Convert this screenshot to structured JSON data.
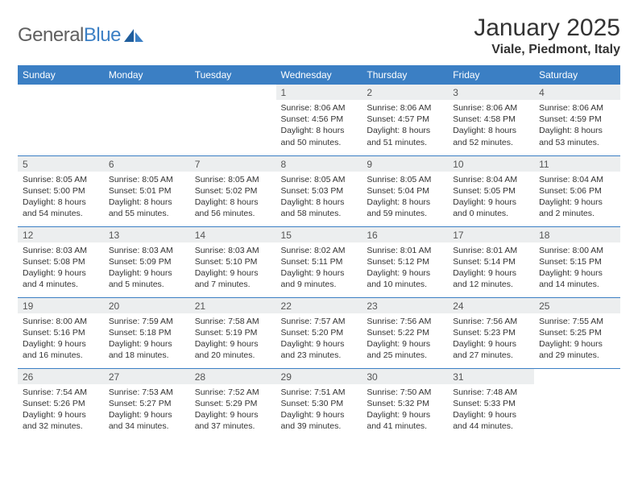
{
  "brand": {
    "name_gray": "General",
    "name_blue": "Blue"
  },
  "header": {
    "month_title": "January 2025",
    "location": "Viale, Piedmont, Italy"
  },
  "colors": {
    "header_bg": "#3b7fc4",
    "header_text": "#ffffff",
    "daynum_bg": "#eceeef",
    "border": "#3b7fc4",
    "logo_gray": "#606060",
    "logo_blue": "#3b7fc4",
    "text": "#333333"
  },
  "typography": {
    "month_title_fontsize": 30,
    "location_fontsize": 16,
    "weekday_fontsize": 12,
    "daynum_fontsize": 12,
    "body_fontsize": 10.5
  },
  "weekdays": [
    "Sunday",
    "Monday",
    "Tuesday",
    "Wednesday",
    "Thursday",
    "Friday",
    "Saturday"
  ],
  "labels": {
    "sunrise": "Sunrise:",
    "sunset": "Sunset:",
    "daylight": "Daylight:"
  },
  "weeks": [
    [
      null,
      null,
      null,
      {
        "d": "1",
        "sunrise": "8:06 AM",
        "sunset": "4:56 PM",
        "dl_line1": "8 hours",
        "dl_line2": "and 50 minutes."
      },
      {
        "d": "2",
        "sunrise": "8:06 AM",
        "sunset": "4:57 PM",
        "dl_line1": "8 hours",
        "dl_line2": "and 51 minutes."
      },
      {
        "d": "3",
        "sunrise": "8:06 AM",
        "sunset": "4:58 PM",
        "dl_line1": "8 hours",
        "dl_line2": "and 52 minutes."
      },
      {
        "d": "4",
        "sunrise": "8:06 AM",
        "sunset": "4:59 PM",
        "dl_line1": "8 hours",
        "dl_line2": "and 53 minutes."
      }
    ],
    [
      {
        "d": "5",
        "sunrise": "8:05 AM",
        "sunset": "5:00 PM",
        "dl_line1": "8 hours",
        "dl_line2": "and 54 minutes."
      },
      {
        "d": "6",
        "sunrise": "8:05 AM",
        "sunset": "5:01 PM",
        "dl_line1": "8 hours",
        "dl_line2": "and 55 minutes."
      },
      {
        "d": "7",
        "sunrise": "8:05 AM",
        "sunset": "5:02 PM",
        "dl_line1": "8 hours",
        "dl_line2": "and 56 minutes."
      },
      {
        "d": "8",
        "sunrise": "8:05 AM",
        "sunset": "5:03 PM",
        "dl_line1": "8 hours",
        "dl_line2": "and 58 minutes."
      },
      {
        "d": "9",
        "sunrise": "8:05 AM",
        "sunset": "5:04 PM",
        "dl_line1": "8 hours",
        "dl_line2": "and 59 minutes."
      },
      {
        "d": "10",
        "sunrise": "8:04 AM",
        "sunset": "5:05 PM",
        "dl_line1": "9 hours",
        "dl_line2": "and 0 minutes."
      },
      {
        "d": "11",
        "sunrise": "8:04 AM",
        "sunset": "5:06 PM",
        "dl_line1": "9 hours",
        "dl_line2": "and 2 minutes."
      }
    ],
    [
      {
        "d": "12",
        "sunrise": "8:03 AM",
        "sunset": "5:08 PM",
        "dl_line1": "9 hours",
        "dl_line2": "and 4 minutes."
      },
      {
        "d": "13",
        "sunrise": "8:03 AM",
        "sunset": "5:09 PM",
        "dl_line1": "9 hours",
        "dl_line2": "and 5 minutes."
      },
      {
        "d": "14",
        "sunrise": "8:03 AM",
        "sunset": "5:10 PM",
        "dl_line1": "9 hours",
        "dl_line2": "and 7 minutes."
      },
      {
        "d": "15",
        "sunrise": "8:02 AM",
        "sunset": "5:11 PM",
        "dl_line1": "9 hours",
        "dl_line2": "and 9 minutes."
      },
      {
        "d": "16",
        "sunrise": "8:01 AM",
        "sunset": "5:12 PM",
        "dl_line1": "9 hours",
        "dl_line2": "and 10 minutes."
      },
      {
        "d": "17",
        "sunrise": "8:01 AM",
        "sunset": "5:14 PM",
        "dl_line1": "9 hours",
        "dl_line2": "and 12 minutes."
      },
      {
        "d": "18",
        "sunrise": "8:00 AM",
        "sunset": "5:15 PM",
        "dl_line1": "9 hours",
        "dl_line2": "and 14 minutes."
      }
    ],
    [
      {
        "d": "19",
        "sunrise": "8:00 AM",
        "sunset": "5:16 PM",
        "dl_line1": "9 hours",
        "dl_line2": "and 16 minutes."
      },
      {
        "d": "20",
        "sunrise": "7:59 AM",
        "sunset": "5:18 PM",
        "dl_line1": "9 hours",
        "dl_line2": "and 18 minutes."
      },
      {
        "d": "21",
        "sunrise": "7:58 AM",
        "sunset": "5:19 PM",
        "dl_line1": "9 hours",
        "dl_line2": "and 20 minutes."
      },
      {
        "d": "22",
        "sunrise": "7:57 AM",
        "sunset": "5:20 PM",
        "dl_line1": "9 hours",
        "dl_line2": "and 23 minutes."
      },
      {
        "d": "23",
        "sunrise": "7:56 AM",
        "sunset": "5:22 PM",
        "dl_line1": "9 hours",
        "dl_line2": "and 25 minutes."
      },
      {
        "d": "24",
        "sunrise": "7:56 AM",
        "sunset": "5:23 PM",
        "dl_line1": "9 hours",
        "dl_line2": "and 27 minutes."
      },
      {
        "d": "25",
        "sunrise": "7:55 AM",
        "sunset": "5:25 PM",
        "dl_line1": "9 hours",
        "dl_line2": "and 29 minutes."
      }
    ],
    [
      {
        "d": "26",
        "sunrise": "7:54 AM",
        "sunset": "5:26 PM",
        "dl_line1": "9 hours",
        "dl_line2": "and 32 minutes."
      },
      {
        "d": "27",
        "sunrise": "7:53 AM",
        "sunset": "5:27 PM",
        "dl_line1": "9 hours",
        "dl_line2": "and 34 minutes."
      },
      {
        "d": "28",
        "sunrise": "7:52 AM",
        "sunset": "5:29 PM",
        "dl_line1": "9 hours",
        "dl_line2": "and 37 minutes."
      },
      {
        "d": "29",
        "sunrise": "7:51 AM",
        "sunset": "5:30 PM",
        "dl_line1": "9 hours",
        "dl_line2": "and 39 minutes."
      },
      {
        "d": "30",
        "sunrise": "7:50 AM",
        "sunset": "5:32 PM",
        "dl_line1": "9 hours",
        "dl_line2": "and 41 minutes."
      },
      {
        "d": "31",
        "sunrise": "7:48 AM",
        "sunset": "5:33 PM",
        "dl_line1": "9 hours",
        "dl_line2": "and 44 minutes."
      },
      null
    ]
  ]
}
